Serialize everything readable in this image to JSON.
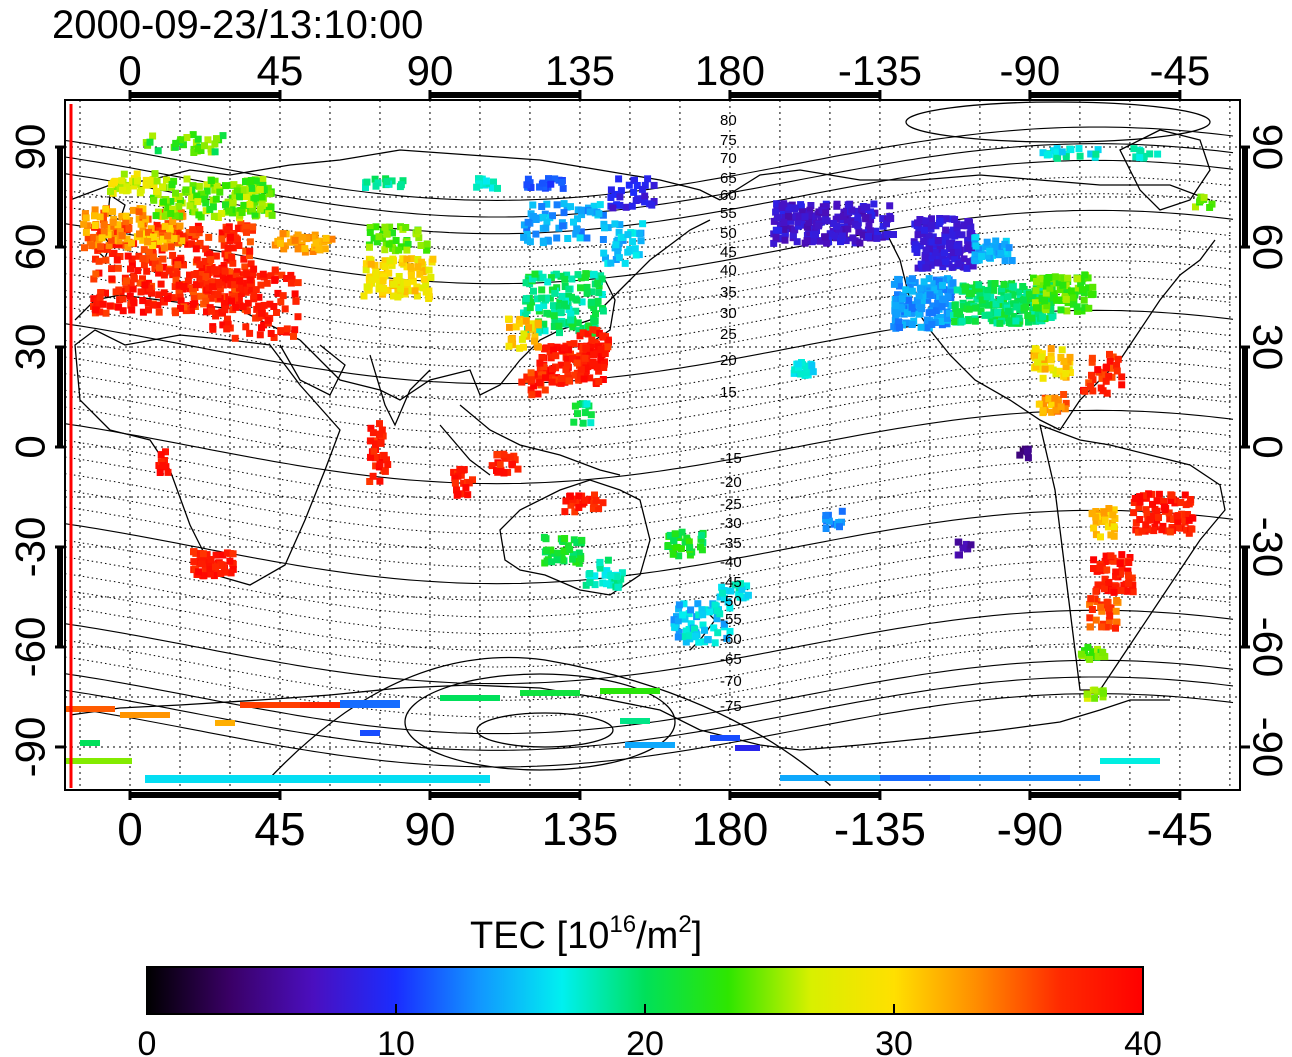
{
  "header": {
    "timestamp": "2000-09-23/13:10:00"
  },
  "map": {
    "lon_ticks_top": [
      "0",
      "45",
      "90",
      "135",
      "180",
      "-135",
      "-90",
      "-45"
    ],
    "lon_ticks_bottom": [
      "0",
      "45",
      "90",
      "135",
      "180",
      "-135",
      "-90",
      "-45"
    ],
    "lat_ticks_left": [
      "90",
      "60",
      "30",
      "0",
      "-30",
      "-60",
      "-90"
    ],
    "lat_ticks_right": [
      "90",
      "60",
      "30",
      "0",
      "-30",
      "-60",
      "-90"
    ],
    "contour_labels": [
      "80",
      "75",
      "70",
      "65",
      "60",
      "55",
      "50",
      "45",
      "40",
      "35",
      "30",
      "25",
      "20",
      "15",
      "-15",
      "-20",
      "-25",
      "-30",
      "-35",
      "-40",
      "-45",
      "-50",
      "-55",
      "-60",
      "-65",
      "-70",
      "-75"
    ]
  },
  "colorbar": {
    "title": "TEC  [10",
    "title_sup1": "16",
    "title_mid": "/m",
    "title_sup2": "2",
    "title_end": "]",
    "ticks": [
      "0",
      "10",
      "20",
      "30",
      "40"
    ],
    "gradient_stops": [
      "#000000",
      "#3a0066",
      "#4b0fbf",
      "#1a2dff",
      "#1296ff",
      "#00f0f0",
      "#00e05a",
      "#2ee600",
      "#d8f000",
      "#ffe000",
      "#ff8c00",
      "#ff2a00",
      "#ff0000"
    ]
  }
}
